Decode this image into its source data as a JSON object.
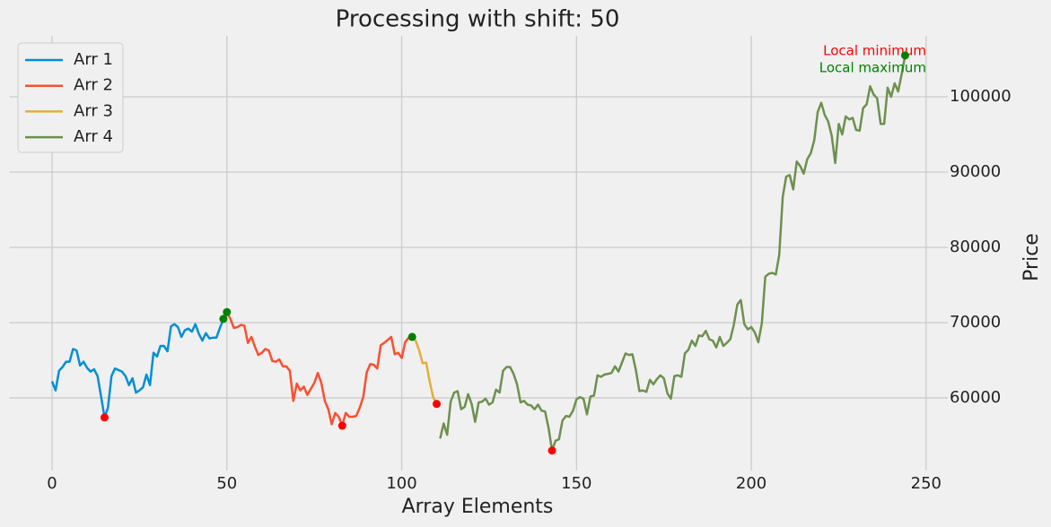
{
  "chart_data": {
    "type": "line",
    "title": "Processing with shift: 50",
    "xlabel": "Array Elements",
    "ylabel": "Price",
    "xlim": [
      -12.2,
      256.2
    ],
    "ylim": [
      50350,
      108100
    ],
    "xticks": [
      0,
      50,
      100,
      150,
      200,
      250
    ],
    "yticks": [
      60000,
      70000,
      80000,
      90000,
      100000
    ],
    "grid": true,
    "y_axis_side": "right",
    "legend_loc": "upper left",
    "series": [
      {
        "name": "Arr 1",
        "color": "#008fd5",
        "x": [
          0,
          1,
          2,
          3,
          4,
          5,
          6,
          7,
          8,
          9,
          10,
          11,
          12,
          13,
          14,
          15,
          16,
          17,
          18,
          19,
          20,
          21,
          22,
          23,
          24,
          25,
          26,
          27,
          28,
          29,
          30,
          31,
          32,
          33,
          34,
          35,
          36,
          37,
          38,
          39,
          40,
          41,
          42,
          43,
          44,
          45,
          46,
          47,
          48,
          49,
          50
        ],
        "values": [
          62200,
          61000,
          63600,
          64100,
          64800,
          64800,
          66500,
          66300,
          64300,
          64800,
          64000,
          63500,
          63800,
          62900,
          60200,
          57400,
          58700,
          62900,
          63900,
          63700,
          63500,
          62900,
          61700,
          62600,
          60700,
          61000,
          61400,
          63100,
          61700,
          66000,
          65500,
          66900,
          66900,
          66200,
          69500,
          69800,
          69400,
          68100,
          69000,
          69200,
          68800,
          69800,
          68500,
          67600,
          68600,
          67900,
          68000,
          68000,
          69300,
          70500,
          71400
        ]
      },
      {
        "name": "Arr 2",
        "color": "#fc4f30",
        "x": [
          50,
          51,
          52,
          53,
          54,
          55,
          56,
          57,
          58,
          59,
          60,
          61,
          62,
          63,
          64,
          65,
          66,
          67,
          68,
          69,
          70,
          71,
          72,
          73,
          74,
          75,
          76,
          77,
          78,
          79,
          80,
          81,
          82,
          83,
          84,
          85,
          86,
          87,
          88,
          89,
          90,
          91,
          92,
          93,
          94,
          95,
          96,
          97,
          98,
          99,
          100,
          101,
          102,
          103
        ],
        "values": [
          71400,
          70500,
          69300,
          69400,
          69700,
          69600,
          67300,
          68100,
          66800,
          65700,
          66000,
          66500,
          66300,
          64900,
          64800,
          65100,
          64200,
          64200,
          63600,
          59600,
          61900,
          61000,
          61500,
          60400,
          61200,
          62000,
          63300,
          62000,
          59600,
          58500,
          56500,
          58000,
          57500,
          56300,
          58000,
          57500,
          57500,
          57600,
          58700,
          60100,
          63400,
          64500,
          64400,
          63900,
          67000,
          67300,
          67700,
          68100,
          65800,
          66000,
          65300,
          67400,
          68000,
          68100
        ]
      },
      {
        "name": "Arr 3",
        "color": "#e5ae38",
        "x": [
          103,
          104,
          105,
          106,
          107,
          108,
          109,
          110
        ],
        "values": [
          68100,
          67600,
          66300,
          64600,
          64700,
          62200,
          60100,
          59200
        ]
      },
      {
        "name": "Arr 4",
        "color": "#6d904f",
        "x": [
          111,
          112,
          113,
          114,
          115,
          116,
          117,
          118,
          119,
          120,
          121,
          122,
          123,
          124,
          125,
          126,
          127,
          128,
          129,
          130,
          131,
          132,
          133,
          134,
          135,
          136,
          137,
          138,
          139,
          140,
          141,
          142,
          143,
          144,
          145,
          146,
          147,
          148,
          149,
          150,
          151,
          152,
          153,
          154,
          155,
          156,
          157,
          158,
          159,
          160,
          161,
          162,
          163,
          164,
          165,
          166,
          167,
          168,
          169,
          170,
          171,
          172,
          173,
          174,
          175,
          176,
          177,
          178,
          179,
          180,
          181,
          182,
          183,
          184,
          185,
          186,
          187,
          188,
          189,
          190,
          191,
          192,
          193,
          194,
          195,
          196,
          197,
          198,
          199,
          200,
          201,
          202,
          203,
          204,
          205,
          206,
          207,
          208,
          209,
          210,
          211,
          212,
          213,
          214,
          215,
          216,
          217,
          218,
          219,
          220,
          221,
          222,
          223,
          224,
          225,
          226,
          227,
          228,
          229,
          230,
          231,
          232,
          233,
          234,
          235,
          236,
          237,
          238,
          239,
          240,
          241,
          242,
          243,
          244
        ],
        "values": [
          54600,
          56600,
          55100,
          59500,
          60700,
          60900,
          58500,
          58800,
          60500,
          59200,
          56800,
          59400,
          59500,
          59900,
          59100,
          59400,
          61100,
          60700,
          63600,
          64100,
          64100,
          63200,
          61800,
          59400,
          59600,
          59100,
          59000,
          58500,
          59100,
          58300,
          58200,
          56000,
          53000,
          54300,
          54500,
          57000,
          57600,
          57500,
          58300,
          59800,
          60100,
          59900,
          57800,
          60200,
          60300,
          63000,
          62800,
          63100,
          63200,
          63300,
          64200,
          63500,
          64700,
          65900,
          65700,
          65800,
          63700,
          60900,
          61000,
          60800,
          62400,
          61800,
          62500,
          63000,
          62600,
          60600,
          59900,
          62900,
          63000,
          62800,
          65900,
          66400,
          67600,
          66900,
          68300,
          68200,
          68900,
          67800,
          67600,
          66700,
          68100,
          66900,
          67300,
          67800,
          69700,
          72400,
          73000,
          69800,
          69100,
          69400,
          68700,
          67400,
          69900,
          76100,
          76500,
          76600,
          76400,
          79000,
          86700,
          89400,
          89600,
          87700,
          91400,
          90800,
          89800,
          91700,
          92500,
          94200,
          98000,
          99200,
          97600,
          96700,
          94800,
          91200,
          96400,
          95000,
          97400,
          97000,
          97200,
          95600,
          95500,
          98500,
          99000,
          101400,
          100300,
          99800,
          96400,
          96400,
          101200,
          100000,
          101800,
          100700,
          103000,
          105500
        ]
      }
    ],
    "markers": [
      {
        "name": "Local minimum",
        "color": "#ff0000",
        "x": [
          15,
          83,
          110,
          143
        ],
        "values": [
          57400,
          56300,
          59200,
          53000
        ]
      },
      {
        "name": "Local maximum",
        "color": "#008000",
        "x": [
          49,
          50,
          103,
          244
        ],
        "values": [
          70500,
          71400,
          68100,
          105500
        ]
      }
    ]
  }
}
